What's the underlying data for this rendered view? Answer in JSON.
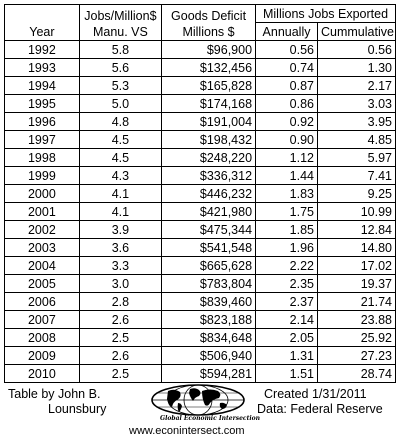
{
  "headers": {
    "year": "Year",
    "jobs_line1": "Jobs/Million$",
    "jobs_line2": "Manu. VS",
    "deficit_line1": "Goods Deficit",
    "deficit_line2": "Millions $",
    "exported_group": "Millions Jobs Exported",
    "annually": "Annually",
    "cumulative": "Cummulative"
  },
  "rows": [
    {
      "year": "1992",
      "jobs": "5.8",
      "deficit": "$96,900",
      "annually": "0.56",
      "cumulative": "0.56"
    },
    {
      "year": "1993",
      "jobs": "5.6",
      "deficit": "$132,456",
      "annually": "0.74",
      "cumulative": "1.30"
    },
    {
      "year": "1994",
      "jobs": "5.3",
      "deficit": "$165,828",
      "annually": "0.87",
      "cumulative": "2.17"
    },
    {
      "year": "1995",
      "jobs": "5.0",
      "deficit": "$174,168",
      "annually": "0.86",
      "cumulative": "3.03"
    },
    {
      "year": "1996",
      "jobs": "4.8",
      "deficit": "$191,004",
      "annually": "0.92",
      "cumulative": "3.95"
    },
    {
      "year": "1997",
      "jobs": "4.5",
      "deficit": "$198,432",
      "annually": "0.90",
      "cumulative": "4.85"
    },
    {
      "year": "1998",
      "jobs": "4.5",
      "deficit": "$248,220",
      "annually": "1.12",
      "cumulative": "5.97"
    },
    {
      "year": "1999",
      "jobs": "4.3",
      "deficit": "$336,312",
      "annually": "1.44",
      "cumulative": "7.41"
    },
    {
      "year": "2000",
      "jobs": "4.1",
      "deficit": "$446,232",
      "annually": "1.83",
      "cumulative": "9.25"
    },
    {
      "year": "2001",
      "jobs": "4.1",
      "deficit": "$421,980",
      "annually": "1.75",
      "cumulative": "10.99"
    },
    {
      "year": "2002",
      "jobs": "3.9",
      "deficit": "$475,344",
      "annually": "1.85",
      "cumulative": "12.84"
    },
    {
      "year": "2003",
      "jobs": "3.6",
      "deficit": "$541,548",
      "annually": "1.96",
      "cumulative": "14.80"
    },
    {
      "year": "2004",
      "jobs": "3.3",
      "deficit": "$665,628",
      "annually": "2.22",
      "cumulative": "17.02"
    },
    {
      "year": "2005",
      "jobs": "3.0",
      "deficit": "$783,804",
      "annually": "2.35",
      "cumulative": "19.37"
    },
    {
      "year": "2006",
      "jobs": "2.8",
      "deficit": "$839,460",
      "annually": "2.37",
      "cumulative": "21.74"
    },
    {
      "year": "2007",
      "jobs": "2.6",
      "deficit": "$823,188",
      "annually": "2.14",
      "cumulative": "23.88"
    },
    {
      "year": "2008",
      "jobs": "2.5",
      "deficit": "$834,648",
      "annually": "2.05",
      "cumulative": "25.92"
    },
    {
      "year": "2009",
      "jobs": "2.6",
      "deficit": "$506,940",
      "annually": "1.31",
      "cumulative": "27.23"
    },
    {
      "year": "2010",
      "jobs": "2.5",
      "deficit": "$594,281",
      "annually": "1.51",
      "cumulative": "28.74"
    }
  ],
  "footer": {
    "credit_line1": "Table by John B.",
    "credit_line2": "Lounsbury",
    "created": "Created 1/31/2011",
    "data_source": "Data:  Federal Reserve",
    "url": "www.econintersect.com",
    "logo_text": "Global Economic Intersection",
    "logo_icon": "globe-logo"
  }
}
